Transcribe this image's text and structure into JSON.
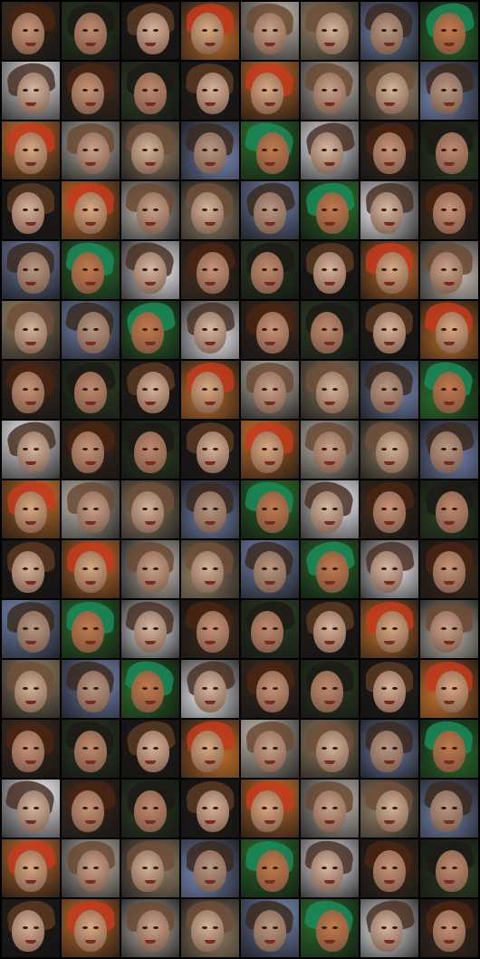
{
  "grid": {
    "rows": 16,
    "cols": 8,
    "palettes": [
      {
        "bg": "#3a2a1e",
        "hair": "#4a2512",
        "skin": "#c89478"
      },
      {
        "bg": "#1f1c18",
        "hair": "#5a3a22",
        "skin": "#d8b29a"
      },
      {
        "bg": "#b9b2a8",
        "hair": "#6b4a34",
        "skin": "#caa28a"
      },
      {
        "bg": "#6f7fa8",
        "hair": "#3b2a20",
        "skin": "#b89884"
      },
      {
        "bg": "#e6e6ea",
        "hair": "#4a3326",
        "skin": "#d6b7a3"
      },
      {
        "bg": "#2a3a20",
        "hair": "#1c1a16",
        "skin": "#c08a6e"
      },
      {
        "bg": "#b86a2a",
        "hair": "#c43a1c",
        "skin": "#d9a880"
      },
      {
        "bg": "#8c7a62",
        "hair": "#6e4f38",
        "skin": "#d4b39a"
      },
      {
        "bg": "#2a6a2a",
        "hair": "#1a8a5a",
        "skin": "#c27a4a"
      }
    ]
  }
}
